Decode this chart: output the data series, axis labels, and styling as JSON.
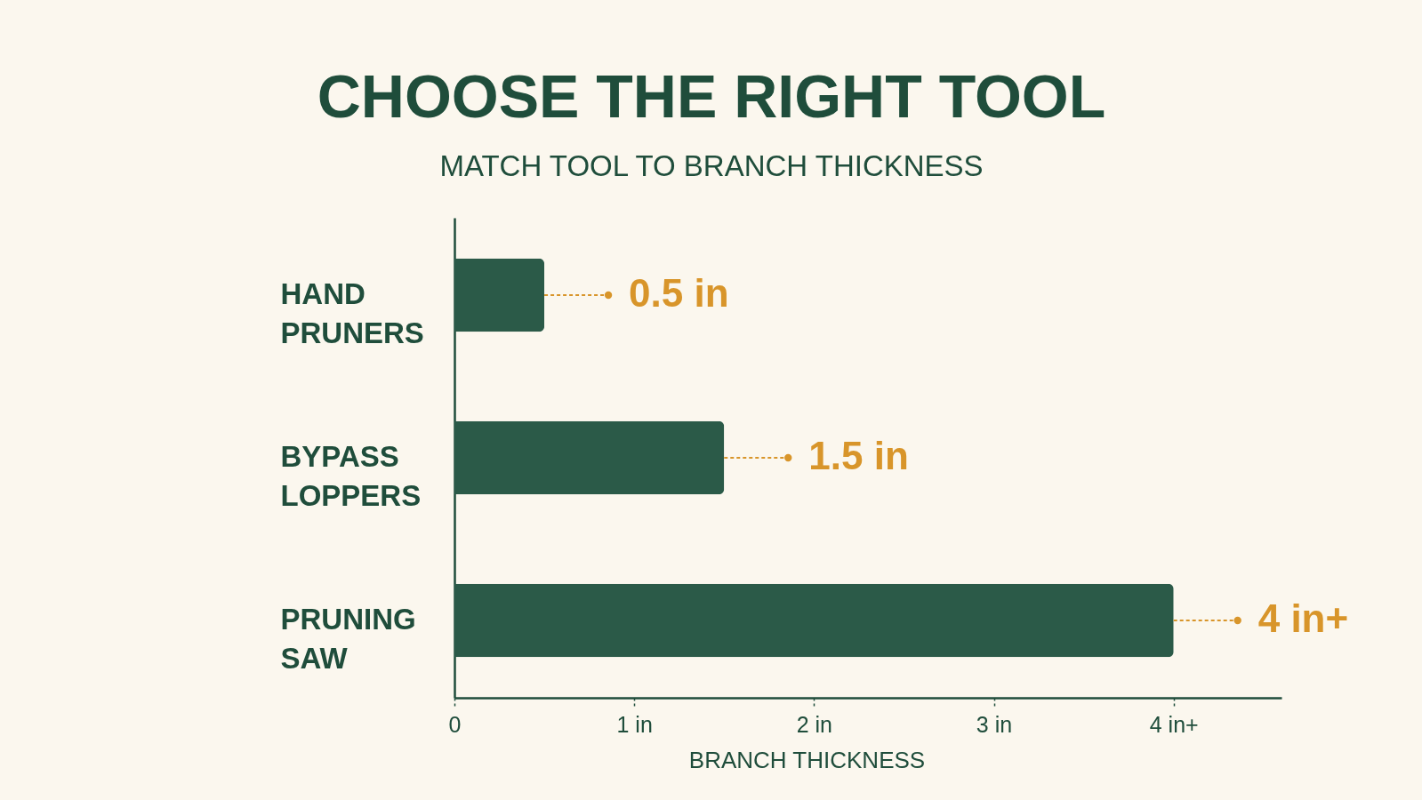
{
  "chart_data": {
    "type": "bar",
    "orientation": "horizontal",
    "title": "CHOOSE THE RIGHT TOOL",
    "subtitle": "MATCH TOOL TO BRANCH THICKNESS",
    "xlabel": "BRANCH THICKNESS",
    "categories": [
      "HAND PRUNERS",
      "BYPASS LOPPERS",
      "PRUNING SAW"
    ],
    "values": [
      0.5,
      1.5,
      4
    ],
    "value_labels": [
      "0.5 in",
      "1.5 in",
      "4 in+"
    ],
    "color": "#2b5a48",
    "xlim": [
      0,
      4.6
    ],
    "xticks": [
      0,
      {
        "value": 1,
        "label": "1 in"
      },
      {
        "value": 2,
        "label": "2 in"
      },
      {
        "value": 3,
        "label": "3 in"
      },
      {
        "value": 4,
        "label": "4 in+"
      }
    ]
  }
}
